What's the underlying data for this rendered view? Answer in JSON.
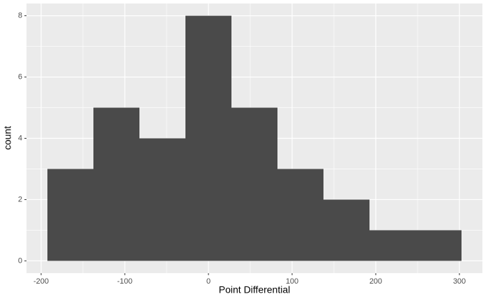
{
  "chart_data": {
    "type": "histogram",
    "x_label": "Point Differential",
    "y_label": "count",
    "bins": [
      -192.5,
      -137.5,
      -82.5,
      -27.5,
      27.5,
      82.5,
      137.5,
      192.5,
      247.5,
      302.5
    ],
    "values": [
      3,
      5,
      4,
      8,
      5,
      3,
      2,
      1,
      1
    ],
    "color": "#4a4a4a",
    "panel_color": "#ebebeb",
    "xlim": [
      -217.5,
      327.5
    ],
    "ylim": [
      -0.4,
      8.4
    ],
    "xticks": [
      -200,
      -100,
      0,
      100,
      200,
      300
    ],
    "yticks": [
      0,
      2,
      4,
      6,
      8
    ],
    "grid": true
  }
}
